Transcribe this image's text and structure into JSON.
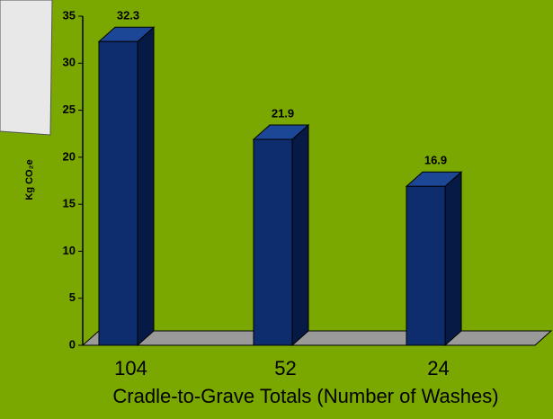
{
  "chart_data": {
    "type": "bar3d",
    "categories": [
      "104",
      "52",
      "24"
    ],
    "values": [
      32.3,
      21.9,
      16.9
    ],
    "color": "#0d2d6e",
    "ylim": [
      0,
      35
    ],
    "yticks": [
      0,
      5,
      10,
      15,
      20,
      25,
      30,
      35
    ],
    "y_label": "Kg CO₂e",
    "x_label": "Cradle-to-Grave Totals (Number of Washes)"
  }
}
